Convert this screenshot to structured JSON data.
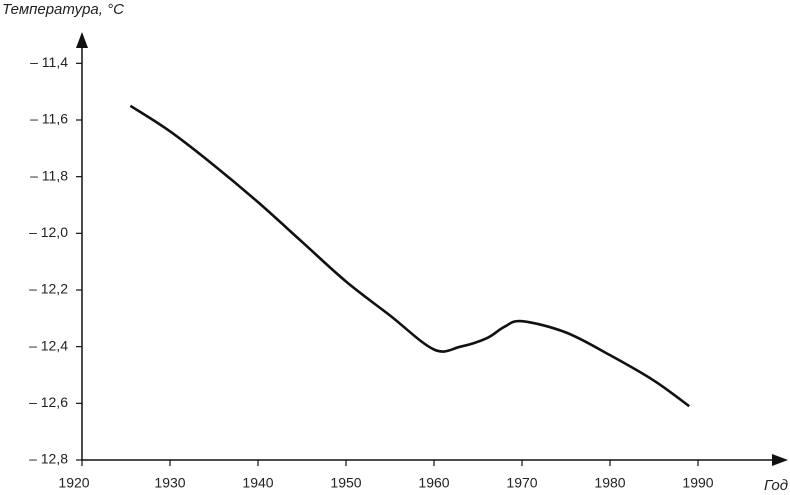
{
  "chart_data": {
    "type": "line",
    "y_label": "Температура, °C",
    "x_label": "Год",
    "x": [
      1925.5,
      1930,
      1935,
      1940,
      1945,
      1950,
      1955,
      1960,
      1963,
      1966,
      1968,
      1970,
      1975,
      1980,
      1985,
      1989
    ],
    "series": [
      {
        "color": "#111111",
        "values": [
          -11.55,
          -11.64,
          -11.76,
          -11.89,
          -12.03,
          -12.17,
          -12.29,
          -12.41,
          -12.4,
          -12.37,
          -12.33,
          -12.31,
          -12.35,
          -12.43,
          -12.52,
          -12.61
        ]
      }
    ],
    "xlim": [
      1920,
      2000
    ],
    "ylim": [
      -12.8,
      -11.3
    ],
    "xticks": [
      1920,
      1930,
      1940,
      1950,
      1960,
      1970,
      1980,
      1990
    ],
    "yticks": [
      {
        "value": -12.8,
        "label": "– 12,8"
      },
      {
        "value": -12.6,
        "label": "– 12,6"
      },
      {
        "value": -12.4,
        "label": "– 12,4"
      },
      {
        "value": -12.2,
        "label": "– 12,2"
      },
      {
        "value": -12.0,
        "label": "– 12,0"
      },
      {
        "value": -11.8,
        "label": "– 11,8"
      },
      {
        "value": -11.6,
        "label": "– 11,6"
      },
      {
        "value": -11.4,
        "label": "– 11,4"
      }
    ]
  }
}
